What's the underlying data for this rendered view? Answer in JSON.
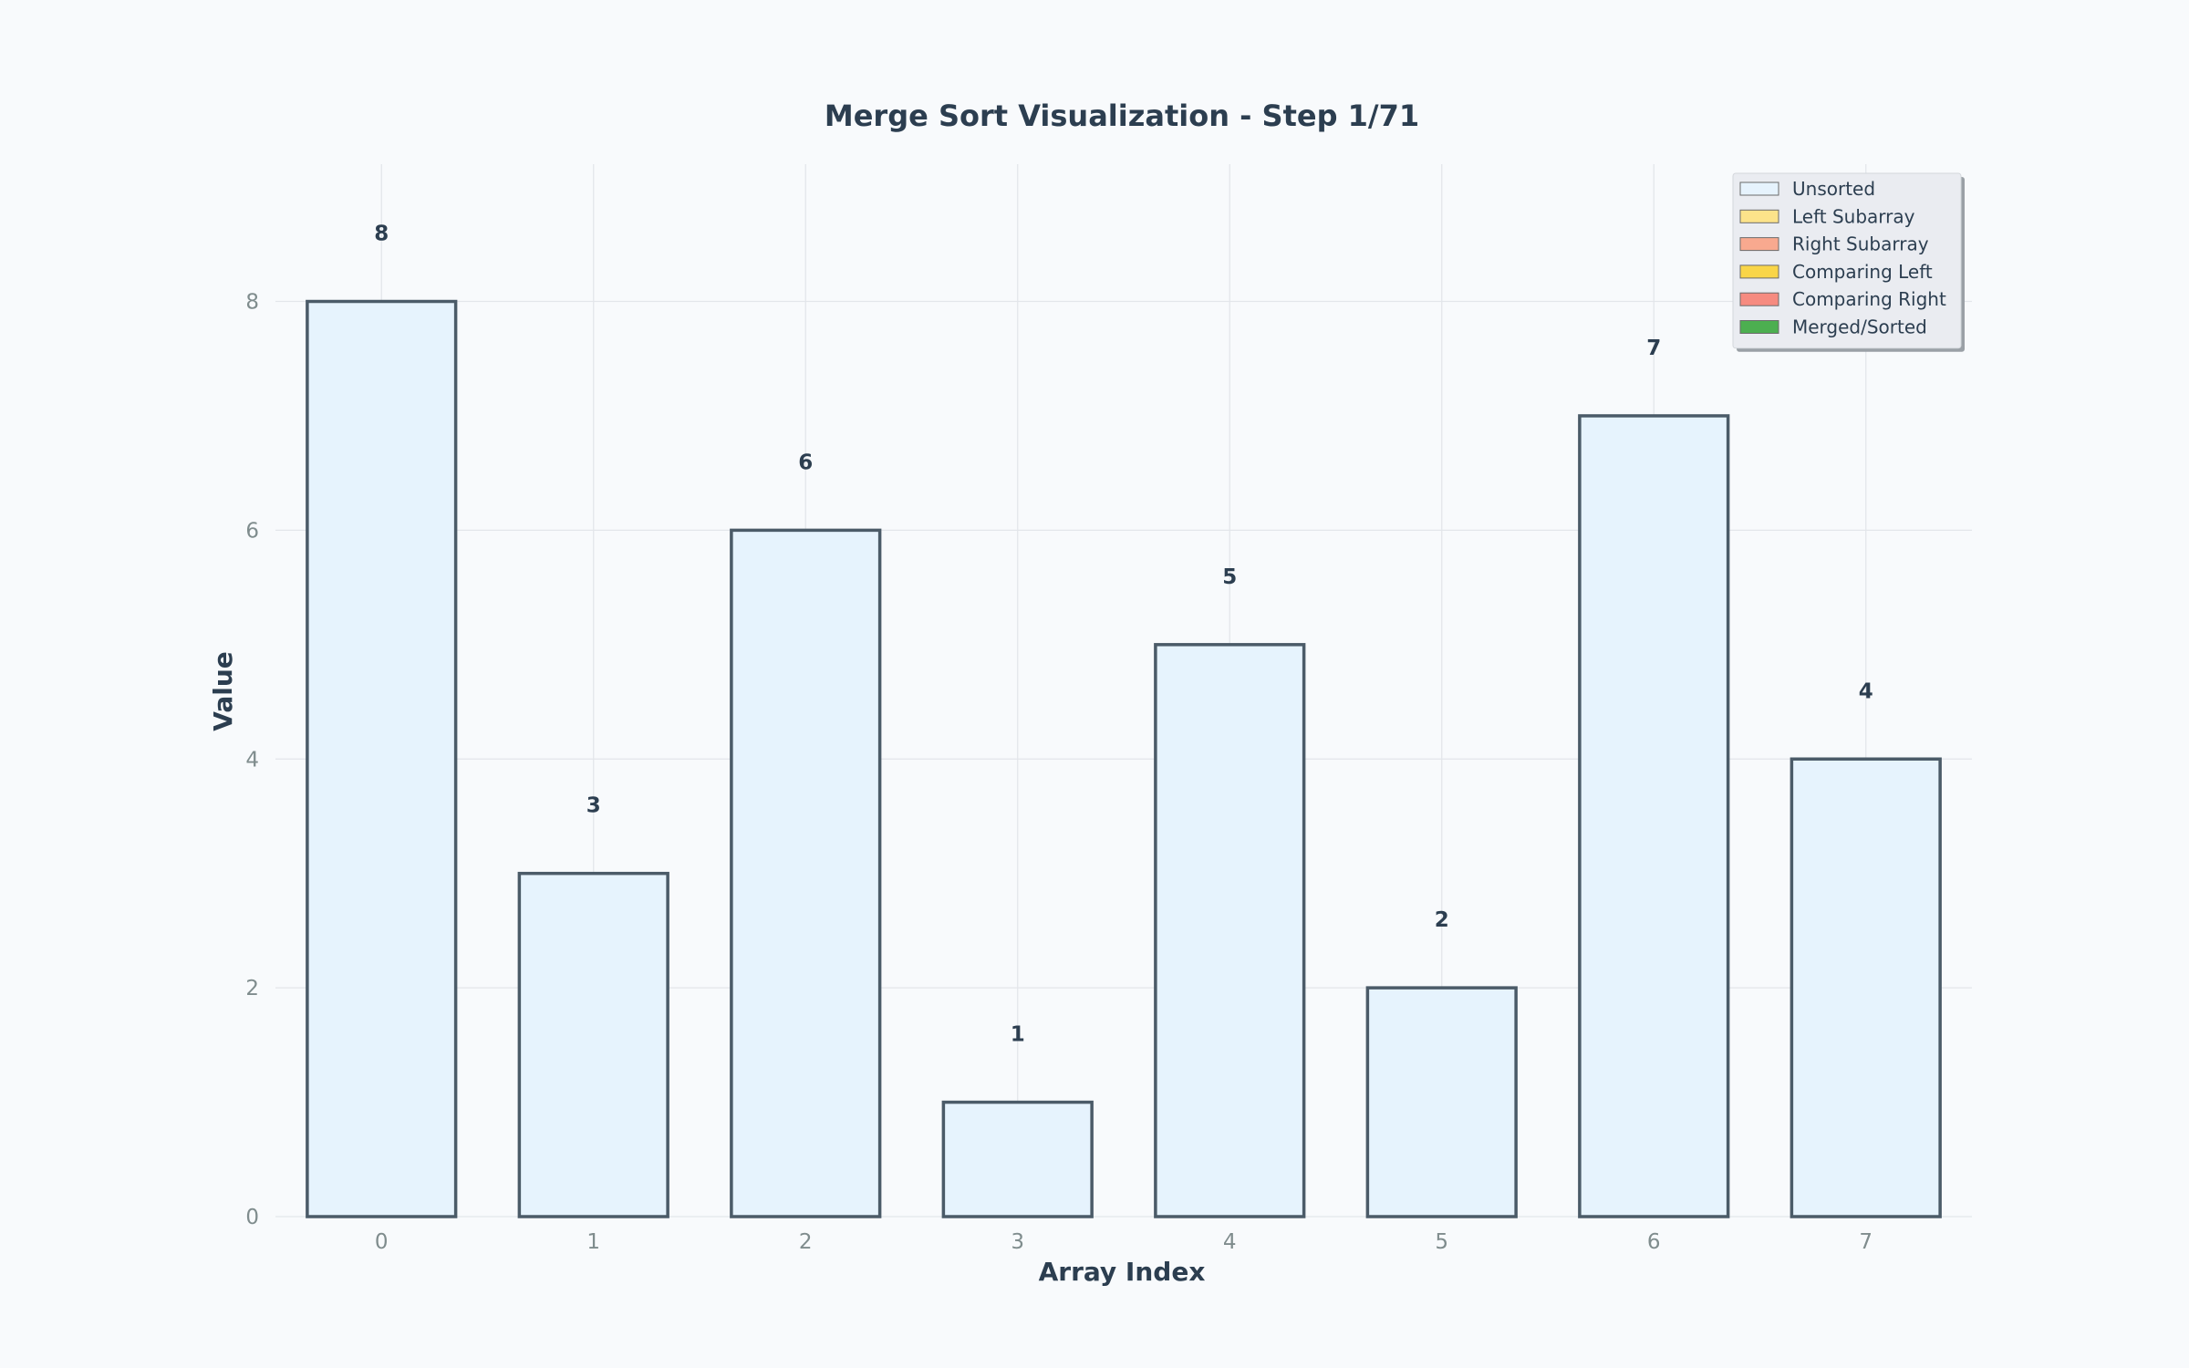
{
  "chart_data": {
    "type": "bar",
    "title": "Merge Sort Visualization - Step 1/71",
    "xlabel": "Array Index",
    "ylabel": "Value",
    "categories": [
      "0",
      "1",
      "2",
      "3",
      "4",
      "5",
      "6",
      "7"
    ],
    "values": [
      8,
      3,
      6,
      1,
      5,
      2,
      7,
      4
    ],
    "bar_states": [
      "Unsorted",
      "Unsorted",
      "Unsorted",
      "Unsorted",
      "Unsorted",
      "Unsorted",
      "Unsorted",
      "Unsorted"
    ],
    "ylim": [
      0,
      9.2
    ],
    "yticks": [
      0,
      2,
      4,
      6,
      8
    ],
    "grid": true,
    "legend_position": "top-right",
    "legend": [
      {
        "label": "Unsorted",
        "color": "#e6f3fd"
      },
      {
        "label": "Left Subarray",
        "color": "#fce38a"
      },
      {
        "label": "Right Subarray",
        "color": "#f8a98f"
      },
      {
        "label": "Comparing Left",
        "color": "#f9d548"
      },
      {
        "label": "Comparing Right",
        "color": "#f68b80"
      },
      {
        "label": "Merged/Sorted",
        "color": "#4caf50"
      }
    ],
    "colors": {
      "bar_edge": "#4b5b68",
      "text": "#2c3e50",
      "tick": "#7f8c8d",
      "background": "#f8fafc"
    }
  }
}
